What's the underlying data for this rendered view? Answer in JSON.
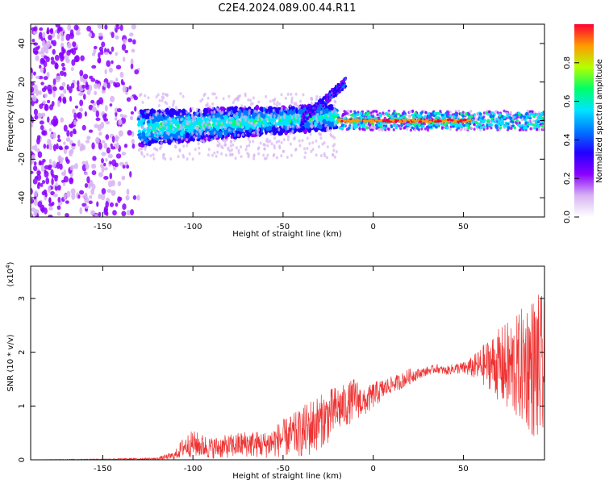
{
  "title": "C2E4.2024.089.00.44.R11",
  "chart_data": [
    {
      "type": "heatmap",
      "description_of_panel": "spectrogram",
      "xlabel": "Height of straight line (km)",
      "ylabel": "Frequency (Hz)",
      "xlim": [
        -190,
        95
      ],
      "ylim": [
        -50,
        50
      ],
      "xticks": [
        -150,
        -100,
        -50,
        0,
        50
      ],
      "yticks": [
        -40,
        -20,
        0,
        20,
        40
      ],
      "colorbar": {
        "label": "Normalized spectral amplitude",
        "range": [
          0,
          1
        ],
        "ticks": [
          "0.0",
          "0.2",
          "0.4",
          "0.6",
          "0.8"
        ],
        "colormap": [
          "#ffffff",
          "#d7b3f2",
          "#8a00ff",
          "#2200ff",
          "#0077ff",
          "#00e5ff",
          "#00ff66",
          "#b6ff00",
          "#ff9900",
          "#ff0033"
        ]
      },
      "features": [
        {
          "region_x_km": [
            -190,
            -130
          ],
          "frequency_hz": [
            -50,
            50
          ],
          "amplitude": "low",
          "note": "scattered noise"
        },
        {
          "region_x_km": [
            -130,
            -20
          ],
          "frequency_hz": [
            -14,
            8
          ],
          "amplitude": "medium",
          "note": "main band"
        },
        {
          "region_x_km": [
            -40,
            -15
          ],
          "frequency_hz": [
            0,
            20
          ],
          "amplitude": "low",
          "note": "rising tail"
        },
        {
          "region_x_km": [
            -20,
            95
          ],
          "frequency_hz": [
            -2,
            2
          ],
          "amplitude": "high",
          "note": "narrow band at 0 Hz"
        }
      ]
    },
    {
      "type": "line",
      "xlabel": "Height of straight line (km)",
      "ylabel": "SNR (10 * v/v)",
      "multiplier": "(x10",
      "multiplier_exp": "4",
      "xlim": [
        -190,
        95
      ],
      "ylim": [
        0,
        3.6
      ],
      "xticks": [
        -150,
        -100,
        -50,
        0,
        50
      ],
      "yticks": [
        0,
        1,
        2,
        3
      ],
      "series": [
        {
          "color": "#ee3333",
          "x": [
            -190,
            -150,
            -120,
            -110,
            -105,
            -100,
            -90,
            -80,
            -70,
            -60,
            -50,
            -45,
            -40,
            -35,
            -30,
            -25,
            -20,
            -15,
            -10,
            -5,
            0,
            5,
            10,
            15,
            20,
            25,
            30,
            35,
            40,
            45,
            50,
            55,
            60,
            65,
            70,
            75,
            80,
            85,
            90,
            95
          ],
          "y": [
            0.0,
            0.01,
            0.02,
            0.08,
            0.25,
            0.3,
            0.22,
            0.25,
            0.3,
            0.28,
            0.4,
            0.45,
            0.5,
            0.6,
            0.7,
            0.8,
            0.95,
            1.0,
            1.15,
            1.05,
            1.2,
            1.3,
            1.4,
            1.45,
            1.55,
            1.6,
            1.65,
            1.7,
            1.65,
            1.7,
            1.7,
            1.72,
            1.75,
            1.8,
            1.75,
            1.7,
            1.7,
            1.8,
            1.7,
            1.6
          ],
          "noise_amplitude": [
            0.0,
            0.01,
            0.02,
            0.08,
            0.2,
            0.25,
            0.2,
            0.22,
            0.25,
            0.25,
            0.35,
            0.4,
            0.45,
            0.55,
            0.5,
            0.5,
            0.45,
            0.4,
            0.4,
            0.25,
            0.25,
            0.2,
            0.15,
            0.15,
            0.15,
            0.1,
            0.08,
            0.08,
            0.08,
            0.1,
            0.12,
            0.2,
            0.35,
            0.5,
            0.7,
            0.9,
            1.0,
            1.2,
            1.4,
            1.5
          ]
        }
      ]
    }
  ]
}
